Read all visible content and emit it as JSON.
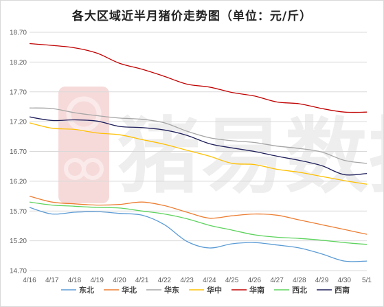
{
  "chart_data": {
    "type": "line",
    "title": "各大区域近半月猪价走势图（单位：元/斤）",
    "xlabel": "",
    "ylabel": "",
    "ylim": [
      14.7,
      18.7
    ],
    "yticks": [
      "18.70",
      "18.20",
      "17.70",
      "17.20",
      "16.70",
      "16.20",
      "15.70",
      "15.20",
      "14.70"
    ],
    "categories": [
      "4/16",
      "4/17",
      "4/18",
      "4/19",
      "4/20",
      "4/21",
      "4/22",
      "4/23",
      "4/24",
      "4/25",
      "4/26",
      "4/27",
      "4/28",
      "4/29",
      "4/30",
      "5/1"
    ],
    "grid": "horizontal",
    "legend_position": "bottom",
    "watermark": "猪易数据",
    "series": [
      {
        "name": "东北",
        "color": "#5b9bd5",
        "values": [
          15.76,
          15.65,
          15.68,
          15.69,
          15.66,
          15.63,
          15.47,
          15.19,
          15.08,
          15.15,
          15.17,
          15.13,
          15.08,
          14.98,
          14.86,
          14.86
        ]
      },
      {
        "name": "华北",
        "color": "#ed7d31",
        "values": [
          15.95,
          15.85,
          15.82,
          15.8,
          15.81,
          15.85,
          15.79,
          15.68,
          15.58,
          15.62,
          15.65,
          15.63,
          15.55,
          15.47,
          15.39,
          15.31
        ]
      },
      {
        "name": "华东",
        "color": "#a5a5a5",
        "values": [
          17.43,
          17.42,
          17.35,
          17.3,
          17.26,
          17.24,
          17.18,
          17.04,
          16.93,
          16.88,
          16.85,
          16.79,
          16.75,
          16.69,
          16.55,
          16.5
        ]
      },
      {
        "name": "华中",
        "color": "#ffc000",
        "values": [
          17.18,
          17.09,
          17.07,
          17.01,
          16.98,
          16.9,
          16.82,
          16.72,
          16.62,
          16.5,
          16.48,
          16.4,
          16.35,
          16.28,
          16.21,
          16.15
        ]
      },
      {
        "name": "华南",
        "color": "#c00000",
        "values": [
          18.51,
          18.48,
          18.44,
          18.35,
          18.18,
          18.08,
          17.96,
          17.83,
          17.78,
          17.69,
          17.63,
          17.53,
          17.5,
          17.42,
          17.36,
          17.36
        ]
      },
      {
        "name": "西北",
        "color": "#5dd35d",
        "values": [
          15.85,
          15.8,
          15.78,
          15.76,
          15.75,
          15.7,
          15.65,
          15.57,
          15.46,
          15.38,
          15.3,
          15.26,
          15.24,
          15.21,
          15.17,
          15.14
        ]
      },
      {
        "name": "西南",
        "color": "#1f1f5c",
        "values": [
          17.28,
          17.22,
          17.23,
          17.21,
          17.12,
          17.1,
          17.06,
          16.97,
          16.83,
          16.76,
          16.7,
          16.62,
          16.55,
          16.46,
          16.31,
          16.33
        ]
      }
    ]
  }
}
